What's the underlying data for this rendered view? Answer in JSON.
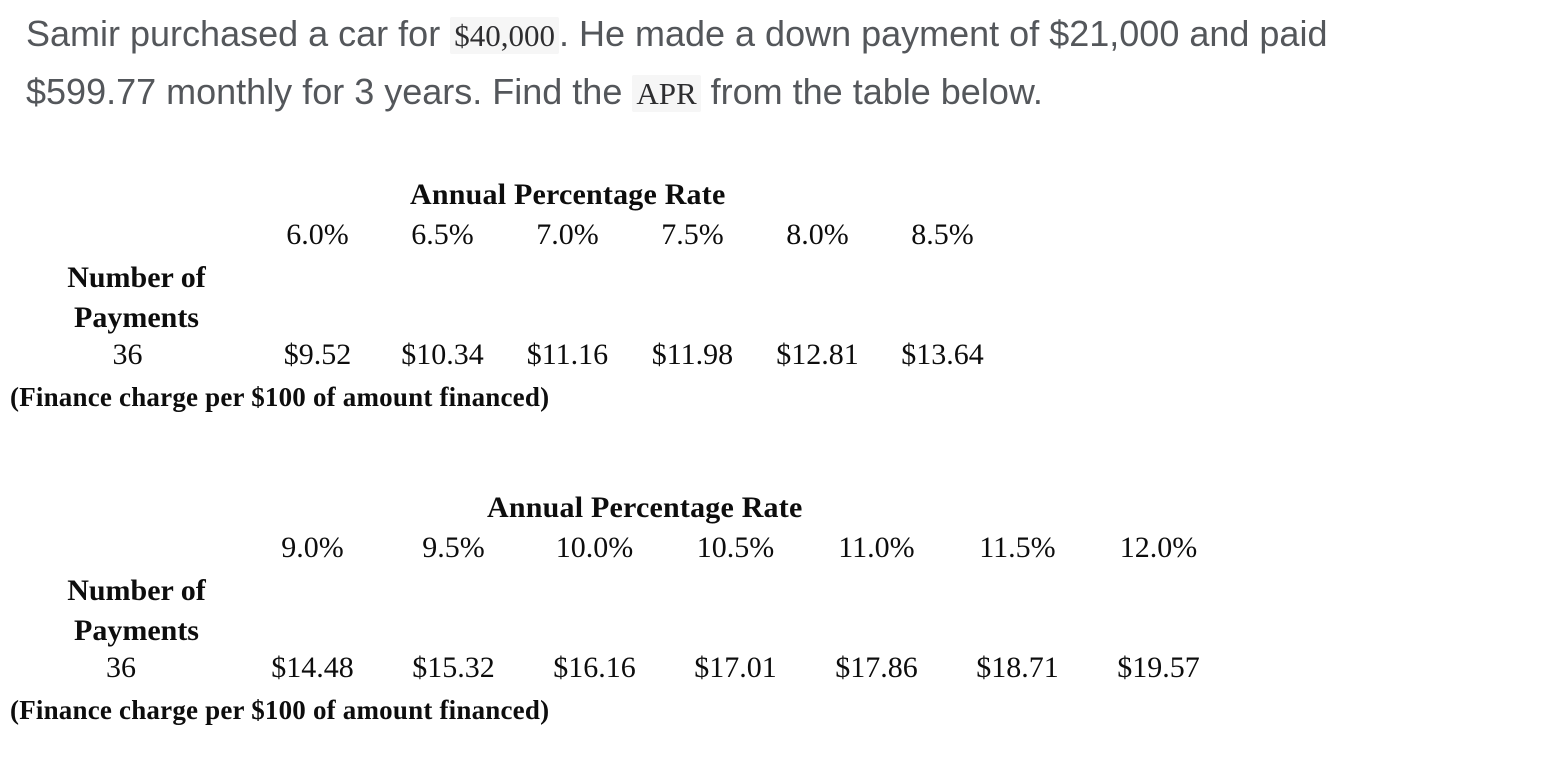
{
  "problem": {
    "line1_before_price": "Samir purchased a car for ",
    "price": "$40,000",
    "line1_after_price": ". He made a down payment of $21,000 and paid",
    "line2_before_apr": "$599.77 monthly for 3 years. Find the ",
    "apr": "APR",
    "line2_after_apr": " from the table below."
  },
  "table1": {
    "title": "Annual Percentage Rate",
    "rates": [
      "6.0%",
      "6.5%",
      "7.0%",
      "7.5%",
      "8.0%",
      "8.5%"
    ],
    "row_label_line1": "Number of",
    "row_label_line2": "Payments",
    "payments": "36",
    "values": [
      "$9.52",
      "$10.34",
      "$11.16",
      "$11.98",
      "$12.81",
      "$13.64"
    ],
    "footnote": "(Finance charge per $100 of amount financed)"
  },
  "table2": {
    "title": "Annual Percentage Rate",
    "rates": [
      "9.0%",
      "9.5%",
      "10.0%",
      "10.5%",
      "11.0%",
      "11.5%",
      "12.0%"
    ],
    "row_label_line1": "Number of",
    "row_label_line2": "Payments",
    "payments": "36",
    "values": [
      "$14.48",
      "$15.32",
      "$16.16",
      "$17.01",
      "$17.86",
      "$18.71",
      "$19.57"
    ],
    "footnote": "(Finance charge per $100 of amount financed)"
  },
  "colors": {
    "paragraph_text": "#54575b",
    "table_text": "#0d0d0d",
    "math_highlight_bg": "#f6f6f6",
    "page_bg": "#ffffff"
  }
}
